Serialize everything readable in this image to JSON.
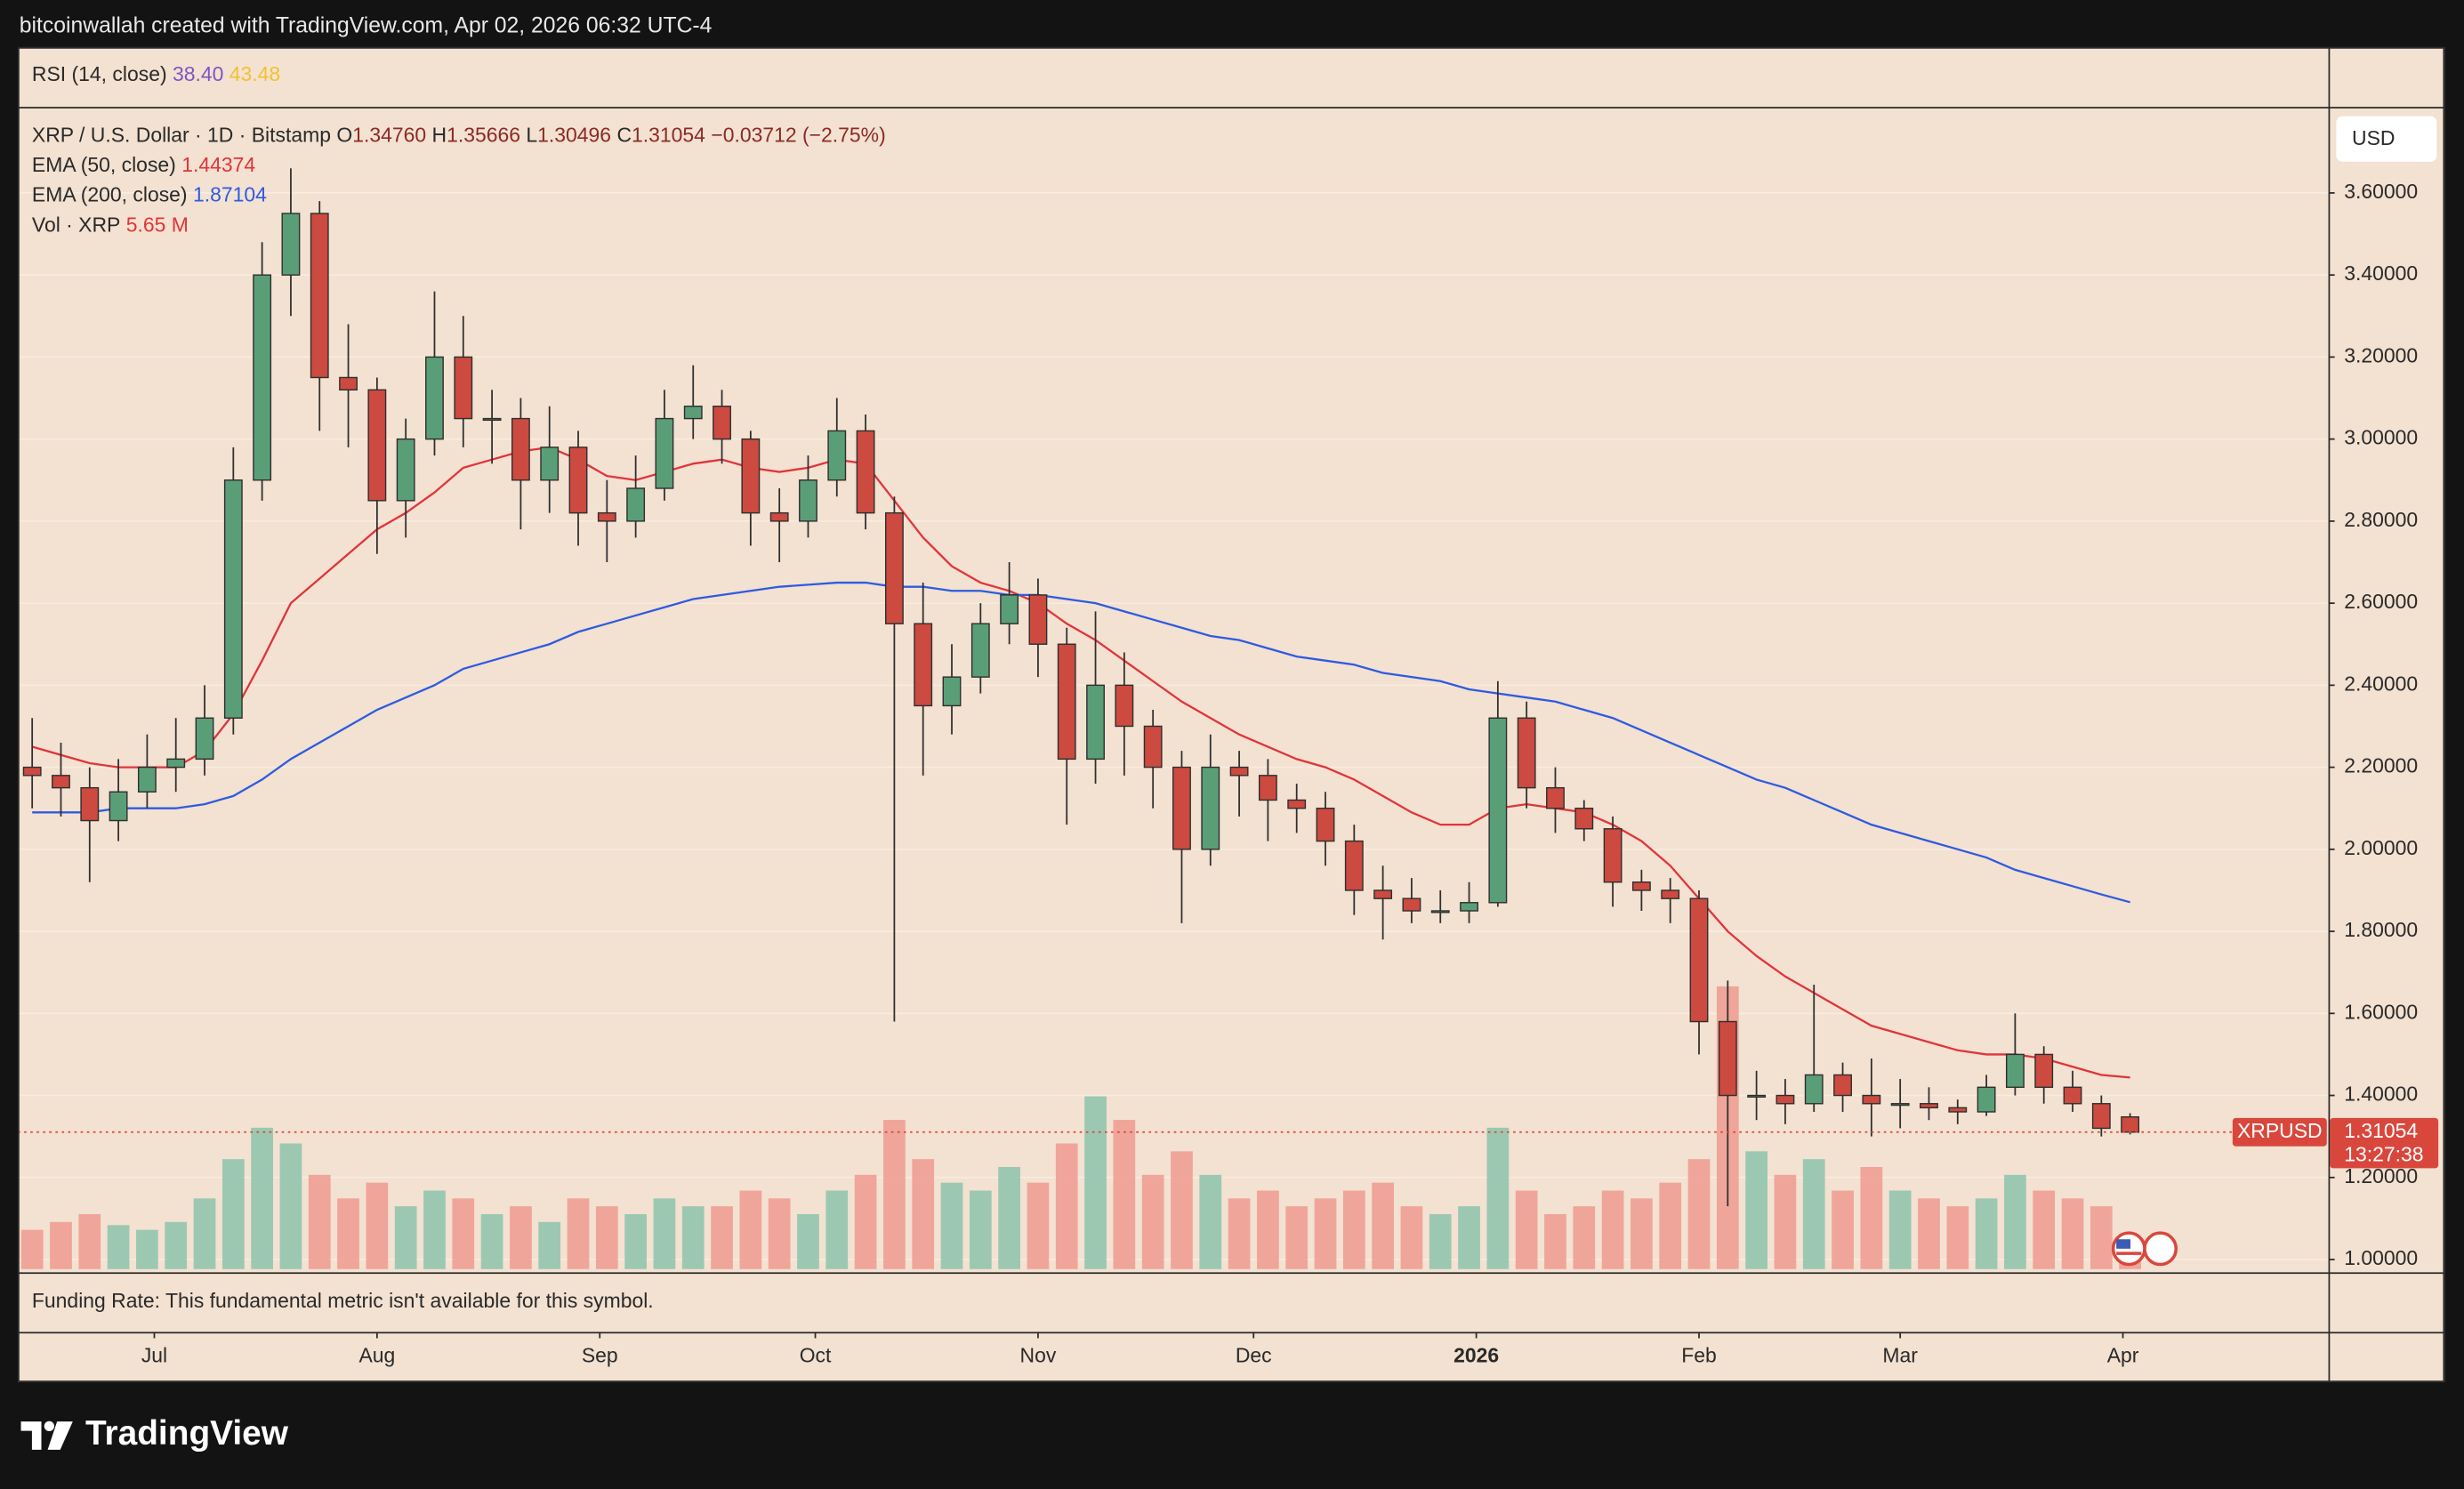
{
  "header": "bitcoinwallah created with TradingView.com, Apr 02, 2026 06:32 UTC-4",
  "footer": {
    "brand": "TradingView"
  },
  "chart_data": {
    "type": "candlestick",
    "title": "XRP / U.S. Dollar · 1D · Bitstamp",
    "ohlc_legend": [
      {
        "key": "O",
        "label": "1.34760"
      },
      {
        "key": "H",
        "label": "1.35666"
      },
      {
        "key": "L",
        "label": "1.30496"
      },
      {
        "key": "C",
        "label": "1.31054"
      }
    ],
    "change": "−0.03712 (−2.75%)",
    "rsi": {
      "name": "RSI (14, close)",
      "values": [
        "38.40",
        "43.48"
      ]
    },
    "currency": "USD",
    "funding_note": "Funding Rate: This fundamental metric isn't available for this symbol.",
    "up_color": "#5a9e78",
    "down_color": "#cc4a3f",
    "grid": true,
    "xlim": [
      -19,
      302.6
    ],
    "xticks": [
      {
        "value": 0,
        "label": "Jul"
      },
      {
        "value": 31,
        "label": "Aug"
      },
      {
        "value": 62,
        "label": "Sep"
      },
      {
        "value": 92,
        "label": "Oct"
      },
      {
        "value": 123,
        "label": "Nov"
      },
      {
        "value": 153,
        "label": "Dec"
      },
      {
        "value": 184,
        "label": "2026"
      },
      {
        "value": 215,
        "label": "Feb"
      },
      {
        "value": 243,
        "label": "Mar"
      },
      {
        "value": 274,
        "label": "Apr"
      }
    ],
    "ylim": [
      0.969,
      3.81
    ],
    "yticks": [
      {
        "value": 1.0,
        "label": "1.00000"
      },
      {
        "value": 1.2,
        "label": "1.20000"
      },
      {
        "value": 1.4,
        "label": "1.40000"
      },
      {
        "value": 1.6,
        "label": "1.60000"
      },
      {
        "value": 1.8,
        "label": "1.80000"
      },
      {
        "value": 2.0,
        "label": "2.00000"
      },
      {
        "value": 2.2,
        "label": "2.20000"
      },
      {
        "value": 2.4,
        "label": "2.40000"
      },
      {
        "value": 2.6,
        "label": "2.60000"
      },
      {
        "value": 2.8,
        "label": "2.80000"
      },
      {
        "value": 3.0,
        "label": "3.00000"
      },
      {
        "value": 3.2,
        "label": "3.20000"
      },
      {
        "value": 3.4,
        "label": "3.40000"
      },
      {
        "value": 3.6,
        "label": "3.60000"
      }
    ],
    "x": [
      -17,
      -13,
      -9,
      -5,
      -1,
      3,
      7,
      11,
      15,
      19,
      23,
      27,
      31,
      35,
      39,
      43,
      47,
      51,
      55,
      59,
      63,
      67,
      71,
      75,
      79,
      83,
      87,
      91,
      95,
      99,
      103,
      107,
      111,
      115,
      119,
      123,
      127,
      131,
      135,
      139,
      143,
      147,
      151,
      155,
      159,
      163,
      167,
      171,
      175,
      179,
      183,
      187,
      191,
      195,
      199,
      203,
      207,
      211,
      215,
      219,
      223,
      227,
      231,
      235,
      239,
      243,
      247,
      251,
      255,
      259,
      263,
      267,
      271,
      275
    ],
    "open": [
      2.2,
      2.18,
      2.15,
      2.07,
      2.14,
      2.2,
      2.22,
      2.32,
      2.9,
      3.4,
      3.55,
      3.15,
      3.12,
      2.85,
      3.0,
      3.2,
      3.05,
      3.05,
      2.9,
      2.98,
      2.82,
      2.8,
      2.88,
      3.05,
      3.08,
      3.0,
      2.82,
      2.8,
      2.9,
      3.02,
      2.82,
      2.55,
      2.35,
      2.42,
      2.55,
      2.62,
      2.5,
      2.22,
      2.4,
      2.3,
      2.2,
      2.0,
      2.2,
      2.18,
      2.12,
      2.1,
      2.02,
      1.9,
      1.88,
      1.85,
      1.85,
      1.87,
      2.32,
      2.15,
      2.1,
      2.05,
      1.92,
      1.9,
      1.88,
      1.58,
      1.4,
      1.4,
      1.38,
      1.45,
      1.4,
      1.38,
      1.38,
      1.37,
      1.36,
      1.42,
      1.5,
      1.42,
      1.38,
      1.3476
    ],
    "high": [
      2.32,
      2.26,
      2.2,
      2.22,
      2.28,
      2.32,
      2.4,
      2.98,
      3.48,
      3.66,
      3.58,
      3.28,
      3.15,
      3.05,
      3.36,
      3.3,
      3.12,
      3.1,
      3.08,
      3.02,
      2.9,
      2.96,
      3.12,
      3.18,
      3.12,
      3.02,
      2.88,
      2.96,
      3.1,
      3.06,
      2.86,
      2.65,
      2.5,
      2.6,
      2.7,
      2.66,
      2.54,
      2.58,
      2.48,
      2.34,
      2.24,
      2.28,
      2.24,
      2.22,
      2.16,
      2.14,
      2.06,
      1.96,
      1.93,
      1.9,
      1.92,
      2.41,
      2.36,
      2.2,
      2.12,
      2.08,
      1.95,
      1.93,
      1.9,
      1.68,
      1.46,
      1.44,
      1.67,
      1.48,
      1.49,
      1.44,
      1.42,
      1.39,
      1.45,
      1.6,
      1.52,
      1.46,
      1.4,
      1.35666
    ],
    "low": [
      2.1,
      2.08,
      1.92,
      2.02,
      2.1,
      2.14,
      2.18,
      2.28,
      2.85,
      3.3,
      3.02,
      2.98,
      2.72,
      2.76,
      2.96,
      2.98,
      2.94,
      2.78,
      2.82,
      2.74,
      2.7,
      2.76,
      2.85,
      3.0,
      2.94,
      2.74,
      2.7,
      2.76,
      2.86,
      2.78,
      1.58,
      2.18,
      2.28,
      2.38,
      2.5,
      2.42,
      2.06,
      2.16,
      2.18,
      2.1,
      1.82,
      1.96,
      2.08,
      2.02,
      2.04,
      1.96,
      1.84,
      1.78,
      1.82,
      1.82,
      1.82,
      1.86,
      2.1,
      2.04,
      2.02,
      1.86,
      1.85,
      1.82,
      1.5,
      1.13,
      1.34,
      1.33,
      1.36,
      1.36,
      1.3,
      1.32,
      1.34,
      1.33,
      1.35,
      1.4,
      1.38,
      1.36,
      1.3,
      1.30496
    ],
    "close": [
      2.18,
      2.15,
      2.07,
      2.14,
      2.2,
      2.22,
      2.32,
      2.9,
      3.4,
      3.55,
      3.15,
      3.12,
      2.85,
      3.0,
      3.2,
      3.05,
      3.05,
      2.9,
      2.98,
      2.82,
      2.8,
      2.88,
      3.05,
      3.08,
      3.0,
      2.82,
      2.8,
      2.9,
      3.02,
      2.82,
      2.55,
      2.35,
      2.42,
      2.55,
      2.62,
      2.5,
      2.22,
      2.4,
      2.3,
      2.2,
      2.0,
      2.2,
      2.18,
      2.12,
      2.1,
      2.02,
      1.9,
      1.88,
      1.85,
      1.85,
      1.87,
      2.32,
      2.15,
      2.1,
      2.05,
      1.92,
      1.9,
      1.88,
      1.58,
      1.4,
      1.4,
      1.38,
      1.45,
      1.4,
      1.38,
      1.38,
      1.37,
      1.36,
      1.42,
      1.5,
      1.42,
      1.38,
      1.32,
      1.31054
    ],
    "series": [
      {
        "name": "EMA (50, close)",
        "color": "#e0353a",
        "value_label": "1.44374",
        "values": [
          2.25,
          2.23,
          2.21,
          2.2,
          2.2,
          2.2,
          2.24,
          2.33,
          2.46,
          2.6,
          2.66,
          2.72,
          2.78,
          2.82,
          2.87,
          2.93,
          2.95,
          2.97,
          2.98,
          2.95,
          2.91,
          2.9,
          2.92,
          2.94,
          2.95,
          2.93,
          2.92,
          2.93,
          2.95,
          2.94,
          2.85,
          2.76,
          2.69,
          2.65,
          2.63,
          2.6,
          2.55,
          2.51,
          2.46,
          2.41,
          2.36,
          2.32,
          2.28,
          2.25,
          2.22,
          2.2,
          2.17,
          2.13,
          2.09,
          2.06,
          2.06,
          2.1,
          2.11,
          2.1,
          2.09,
          2.06,
          2.02,
          1.96,
          1.88,
          1.8,
          1.74,
          1.69,
          1.65,
          1.61,
          1.57,
          1.55,
          1.53,
          1.51,
          1.5,
          1.5,
          1.49,
          1.47,
          1.45,
          1.44374
        ]
      },
      {
        "name": "EMA (200, close)",
        "color": "#2e5be0",
        "value_label": "1.87104",
        "values": [
          2.09,
          2.09,
          2.09,
          2.1,
          2.1,
          2.1,
          2.11,
          2.13,
          2.17,
          2.22,
          2.26,
          2.3,
          2.34,
          2.37,
          2.4,
          2.44,
          2.46,
          2.48,
          2.5,
          2.53,
          2.55,
          2.57,
          2.59,
          2.61,
          2.62,
          2.63,
          2.64,
          2.645,
          2.65,
          2.65,
          2.64,
          2.64,
          2.63,
          2.63,
          2.62,
          2.62,
          2.61,
          2.6,
          2.58,
          2.56,
          2.54,
          2.52,
          2.51,
          2.49,
          2.47,
          2.46,
          2.45,
          2.43,
          2.42,
          2.41,
          2.39,
          2.38,
          2.37,
          2.36,
          2.34,
          2.32,
          2.29,
          2.26,
          2.23,
          2.2,
          2.17,
          2.15,
          2.12,
          2.09,
          2.06,
          2.04,
          2.02,
          2.0,
          1.98,
          1.95,
          1.93,
          1.91,
          1.89,
          1.87104
        ]
      }
    ],
    "volume": {
      "name": "Vol · XRP",
      "value_label": "5.65 M",
      "ylim": [
        0,
        740
      ],
      "up_color": "#8cc3ad",
      "down_color": "#ef9a90",
      "values": [
        25,
        30,
        35,
        28,
        25,
        30,
        45,
        70,
        90,
        80,
        60,
        45,
        55,
        40,
        50,
        45,
        35,
        40,
        30,
        45,
        40,
        35,
        45,
        40,
        40,
        50,
        45,
        35,
        50,
        60,
        95,
        70,
        55,
        50,
        65,
        55,
        80,
        110,
        95,
        60,
        75,
        60,
        45,
        50,
        40,
        45,
        50,
        55,
        40,
        35,
        40,
        90,
        50,
        35,
        40,
        50,
        45,
        55,
        70,
        180,
        75,
        60,
        70,
        50,
        65,
        50,
        45,
        40,
        45,
        60,
        50,
        45,
        40,
        5.65
      ]
    },
    "last_price": {
      "value": 1.31054,
      "label": "1.31054",
      "symbol": "XRPUSD",
      "countdown": "13:27:38",
      "color": "#d9473c"
    }
  }
}
